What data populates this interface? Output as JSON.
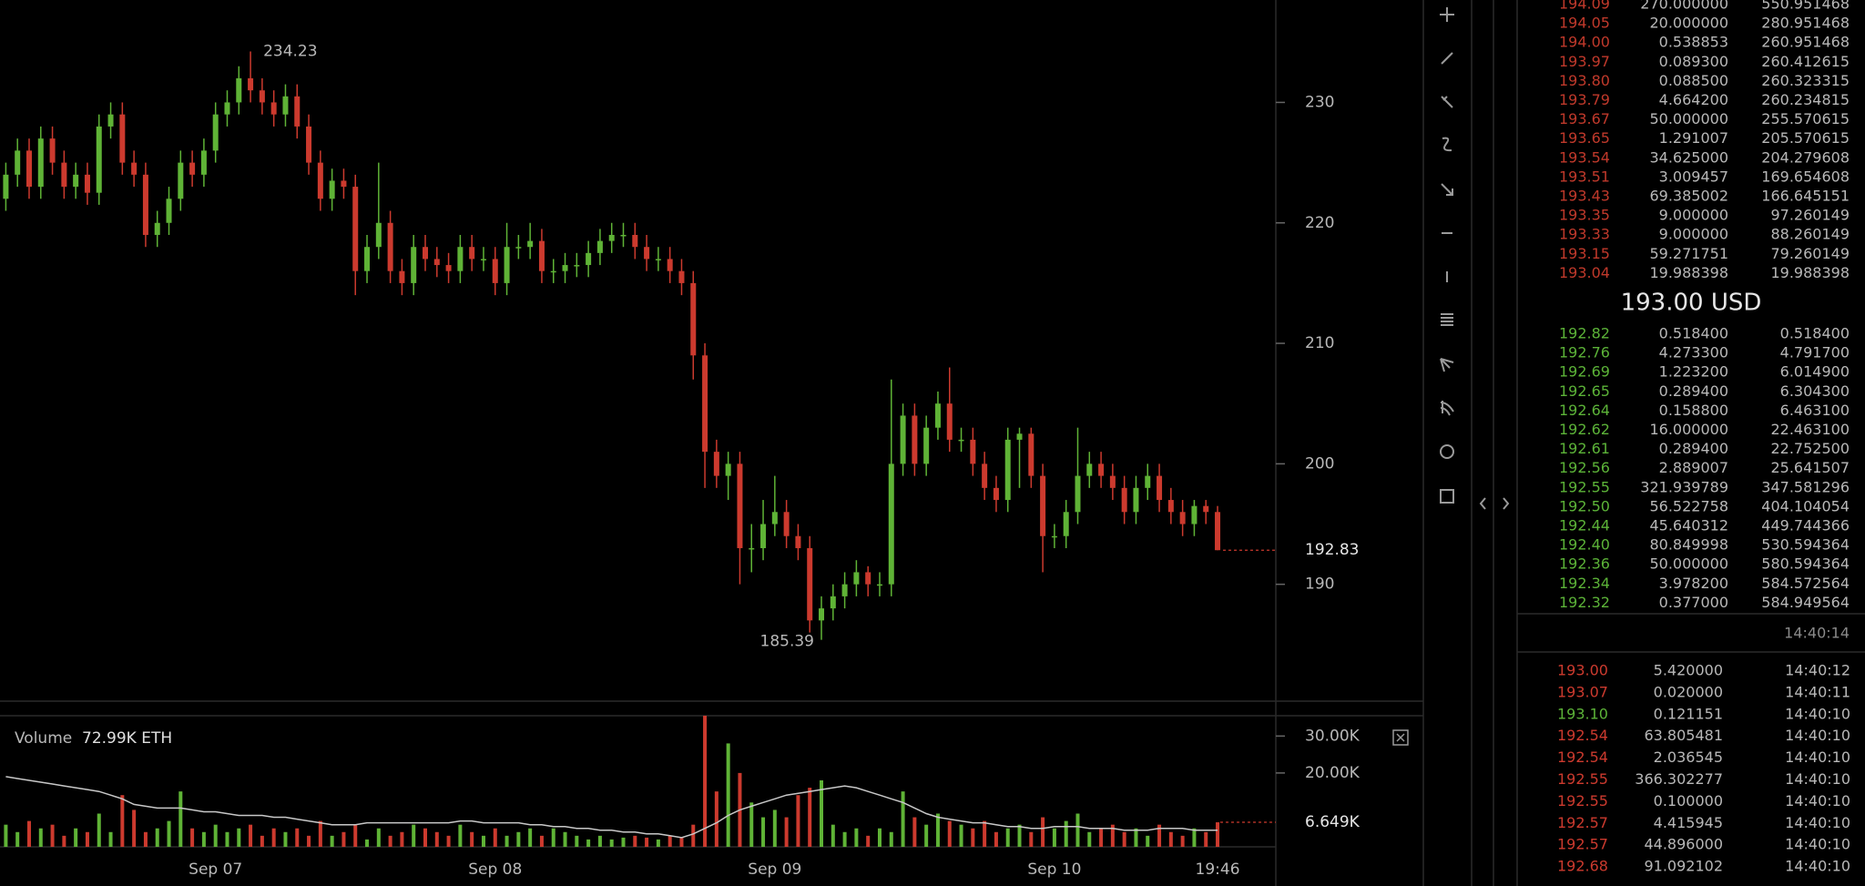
{
  "chart_data": [
    {
      "type": "candlestick",
      "open": [
        222,
        224,
        226,
        223,
        227,
        225,
        223,
        224,
        222.5,
        228,
        229,
        225,
        224,
        219,
        220,
        222,
        225,
        224,
        226,
        229,
        230,
        232,
        231,
        230,
        229,
        230.5,
        228,
        225,
        222,
        223.5,
        223,
        216,
        218,
        220,
        216,
        215,
        218,
        217,
        216.5,
        216,
        218,
        217,
        217,
        215,
        218,
        218,
        218.5,
        216,
        216,
        216.5,
        216.5,
        217.5,
        218.5,
        219,
        219,
        218,
        217,
        217,
        216,
        215,
        209,
        201,
        199,
        200,
        193,
        193,
        195,
        196,
        194,
        193,
        187,
        188,
        189,
        190,
        191,
        190,
        190,
        200,
        204,
        200,
        203,
        205,
        202,
        202,
        200,
        198,
        197,
        202,
        202.5,
        199,
        194,
        194,
        196,
        199,
        200,
        199,
        198,
        196,
        198,
        199,
        197,
        196,
        195,
        196.5,
        196
      ],
      "high": [
        225,
        227,
        227,
        228,
        228,
        226,
        225,
        225,
        229,
        230,
        230,
        226,
        225,
        221,
        223,
        226,
        226,
        227,
        230,
        231,
        233,
        234.23,
        232,
        231,
        231.5,
        231.5,
        229,
        226,
        224.5,
        224.5,
        224,
        219,
        225,
        221,
        217,
        219,
        219,
        218,
        217.5,
        219,
        219,
        218,
        218,
        220,
        219,
        220,
        219.5,
        217,
        217.5,
        217.5,
        218.5,
        219.5,
        220,
        220,
        220,
        219,
        218,
        218,
        217,
        216,
        210,
        202,
        201,
        201,
        195,
        197,
        199,
        197,
        195,
        194,
        189,
        190,
        191,
        192,
        191.5,
        191,
        207,
        205,
        205,
        204,
        206,
        208,
        203,
        203,
        201,
        199,
        203,
        203,
        203,
        200,
        195,
        197,
        203,
        201,
        201,
        200,
        199,
        199,
        200,
        200,
        198,
        197,
        197,
        197,
        196.5
      ],
      "low": [
        221,
        223,
        222,
        222,
        224,
        222,
        222,
        221.5,
        221.5,
        227,
        224,
        223,
        218,
        218,
        219,
        221,
        223,
        223,
        225,
        228,
        229,
        230,
        229,
        228,
        228,
        227,
        224,
        221,
        221,
        222,
        214,
        215,
        217,
        215,
        214,
        214,
        216,
        215.5,
        215,
        215,
        216,
        216,
        214,
        214,
        217,
        217,
        215,
        215,
        215,
        215.5,
        215.5,
        216.5,
        217.5,
        218,
        217,
        216,
        216,
        215,
        214,
        207,
        198,
        198,
        197,
        190,
        191,
        192,
        194,
        193,
        192,
        186,
        185.39,
        187,
        188,
        189,
        189,
        189,
        189,
        199,
        199,
        199,
        202,
        201,
        201,
        199,
        197,
        196,
        196,
        198,
        198,
        191,
        193,
        193,
        195,
        198,
        198,
        197,
        195,
        195,
        197,
        196,
        195,
        194,
        194,
        195,
        192.83
      ],
      "close": [
        224,
        226,
        223,
        227,
        225,
        223,
        224,
        222.5,
        228,
        229,
        225,
        224,
        219,
        220,
        222,
        225,
        224,
        226,
        229,
        230,
        232,
        231,
        230,
        229,
        230.5,
        228,
        225,
        222,
        223.5,
        223,
        216,
        218,
        220,
        216,
        215,
        218,
        217,
        216.5,
        216,
        218,
        217,
        217,
        215,
        218,
        218,
        218.5,
        216,
        216,
        216.5,
        216.5,
        217.5,
        218.5,
        219,
        219,
        218,
        217,
        217,
        216,
        215,
        209,
        201,
        199,
        200,
        193,
        193,
        195,
        196,
        194,
        193,
        187,
        188,
        189,
        190,
        191,
        190,
        190,
        200,
        204,
        200,
        203,
        205,
        202,
        202,
        200,
        198,
        197,
        202,
        202.5,
        199,
        194,
        194,
        196,
        199,
        200,
        199,
        198,
        196,
        198,
        199,
        197,
        196,
        195,
        196.5,
        196,
        192.83
      ],
      "up_color": "#5fb336",
      "down_color": "#cc3a2e",
      "xlim": [
        -0.5,
        109
      ],
      "xticks": [
        {
          "value": 18,
          "label": "Sep 07"
        },
        {
          "value": 42,
          "label": "Sep 08"
        },
        {
          "value": 66,
          "label": "Sep 09"
        },
        {
          "value": 90,
          "label": "Sep 10"
        },
        {
          "value": 104,
          "label": "19:46"
        }
      ],
      "ylim": [
        180.3,
        238.5
      ],
      "yticks": [
        190,
        200,
        210,
        220,
        230
      ]
    },
    {
      "type": "bar",
      "title": "Volume",
      "legend_value": "72.99K ETH",
      "values": [
        6000,
        4000,
        7000,
        5000,
        6000,
        3000,
        5000,
        4000,
        9000,
        4000,
        14000,
        10000,
        4000,
        5000,
        7000,
        15000,
        5000,
        4000,
        6000,
        4000,
        5000,
        6000,
        3000,
        5000,
        4000,
        5000,
        3000,
        7000,
        3000,
        4000,
        6000,
        2000,
        5000,
        3000,
        4000,
        6000,
        5000,
        4000,
        3000,
        6000,
        4000,
        3000,
        5000,
        3000,
        4000,
        5000,
        3000,
        5000,
        4000,
        3000,
        2000,
        3000,
        2000,
        2500,
        3000,
        2500,
        2000,
        3000,
        2500,
        6000,
        35500,
        15000,
        28000,
        20000,
        12000,
        8000,
        10000,
        8000,
        14000,
        16000,
        18000,
        6000,
        4000,
        5000,
        3000,
        5000,
        4000,
        15000,
        8000,
        6000,
        9000,
        7000,
        6000,
        5000,
        7000,
        4000,
        5000,
        6000,
        4000,
        8000,
        5000,
        7000,
        9000,
        4000,
        5000,
        6000,
        4000,
        5000,
        3000,
        6000,
        4000,
        3000,
        5000,
        4000,
        6649
      ],
      "current_label": "6.649K",
      "ma_values": [
        19000,
        18500,
        18000,
        17500,
        17000,
        16500,
        16000,
        15500,
        15000,
        14000,
        13000,
        11500,
        11000,
        10500,
        10500,
        10500,
        10000,
        9500,
        9500,
        9000,
        8500,
        8500,
        8500,
        8000,
        8000,
        7500,
        7000,
        6500,
        6000,
        6000,
        6000,
        6500,
        6500,
        6500,
        6500,
        6500,
        6500,
        6500,
        6500,
        7000,
        7000,
        6500,
        6500,
        6500,
        6500,
        6000,
        6000,
        5500,
        5500,
        5000,
        5000,
        4500,
        4500,
        4000,
        4000,
        3500,
        3500,
        3000,
        2500,
        3500,
        5000,
        6500,
        8500,
        10000,
        11000,
        12000,
        13000,
        14000,
        14500,
        15000,
        15500,
        16000,
        16500,
        16000,
        15000,
        14000,
        13000,
        12000,
        10500,
        9000,
        8000,
        7500,
        7000,
        6500,
        6500,
        6000,
        5500,
        5500,
        5000,
        5000,
        5500,
        5500,
        5500,
        5000,
        5000,
        5000,
        4500,
        4500,
        4500,
        5000,
        5000,
        5000,
        4500,
        4500,
        4500
      ],
      "ma_color": "#c8c8c8",
      "ylim": [
        0,
        35500
      ],
      "yticks": [
        {
          "value": 20000,
          "label": "20.00K"
        },
        {
          "value": 30000,
          "label": "30.00K"
        }
      ]
    }
  ],
  "order_book": {
    "ask_color": "#c0392b",
    "bid_color": "#5cb338",
    "asks": [
      [
        "194.09",
        "270.000000",
        "550.951468"
      ],
      [
        "194.05",
        "20.000000",
        "280.951468"
      ],
      [
        "194.00",
        "0.538853",
        "260.951468"
      ],
      [
        "193.97",
        "0.089300",
        "260.412615"
      ],
      [
        "193.80",
        "0.088500",
        "260.323315"
      ],
      [
        "193.79",
        "4.664200",
        "260.234815"
      ],
      [
        "193.67",
        "50.000000",
        "255.570615"
      ],
      [
        "193.65",
        "1.291007",
        "205.570615"
      ],
      [
        "193.54",
        "34.625000",
        "204.279608"
      ],
      [
        "193.51",
        "3.009457",
        "169.654608"
      ],
      [
        "193.43",
        "69.385002",
        "166.645151"
      ],
      [
        "193.35",
        "9.000000",
        "97.260149"
      ],
      [
        "193.33",
        "9.000000",
        "88.260149"
      ],
      [
        "193.15",
        "59.271751",
        "79.260149"
      ],
      [
        "193.04",
        "19.988398",
        "19.988398"
      ]
    ],
    "mid_price": "193.00 USD",
    "bids": [
      [
        "192.82",
        "0.518400",
        "0.518400"
      ],
      [
        "192.76",
        "4.273300",
        "4.791700"
      ],
      [
        "192.69",
        "1.223200",
        "6.014900"
      ],
      [
        "192.65",
        "0.289400",
        "6.304300"
      ],
      [
        "192.64",
        "0.158800",
        "6.463100"
      ],
      [
        "192.62",
        "16.000000",
        "22.463100"
      ],
      [
        "192.61",
        "0.289400",
        "22.752500"
      ],
      [
        "192.56",
        "2.889007",
        "25.641507"
      ],
      [
        "192.55",
        "321.939789",
        "347.581296"
      ],
      [
        "192.50",
        "56.522758",
        "404.104054"
      ],
      [
        "192.44",
        "45.640312",
        "449.744366"
      ],
      [
        "192.40",
        "80.849998",
        "530.594364"
      ],
      [
        "192.36",
        "50.000000",
        "580.594364"
      ],
      [
        "192.34",
        "3.978200",
        "584.572564"
      ],
      [
        "192.32",
        "0.377000",
        "584.949564"
      ]
    ]
  },
  "trades": {
    "time": "14:40:14",
    "rows": [
      {
        "price": "193.00",
        "amount": "5.420000",
        "time": "14:40:12",
        "color": "#cc3a2e"
      },
      {
        "price": "193.07",
        "amount": "0.020000",
        "time": "14:40:11",
        "color": "#cc3a2e"
      },
      {
        "price": "193.10",
        "amount": "0.121151",
        "time": "14:40:10",
        "color": "#5cb338"
      },
      {
        "price": "192.54",
        "amount": "63.805481",
        "time": "14:40:10",
        "color": "#cc3a2e"
      },
      {
        "price": "192.54",
        "amount": "2.036545",
        "time": "14:40:10",
        "color": "#cc3a2e"
      },
      {
        "price": "192.55",
        "amount": "366.302277",
        "time": "14:40:10",
        "color": "#cc3a2e"
      },
      {
        "price": "192.55",
        "amount": "0.100000",
        "time": "14:40:10",
        "color": "#cc3a2e"
      },
      {
        "price": "192.57",
        "amount": "4.415945",
        "time": "14:40:10",
        "color": "#cc3a2e"
      },
      {
        "price": "192.57",
        "amount": "44.896000",
        "time": "14:40:10",
        "color": "#cc3a2e"
      },
      {
        "price": "192.68",
        "amount": "91.092102",
        "time": "14:40:10",
        "color": "#cc3a2e"
      }
    ]
  }
}
